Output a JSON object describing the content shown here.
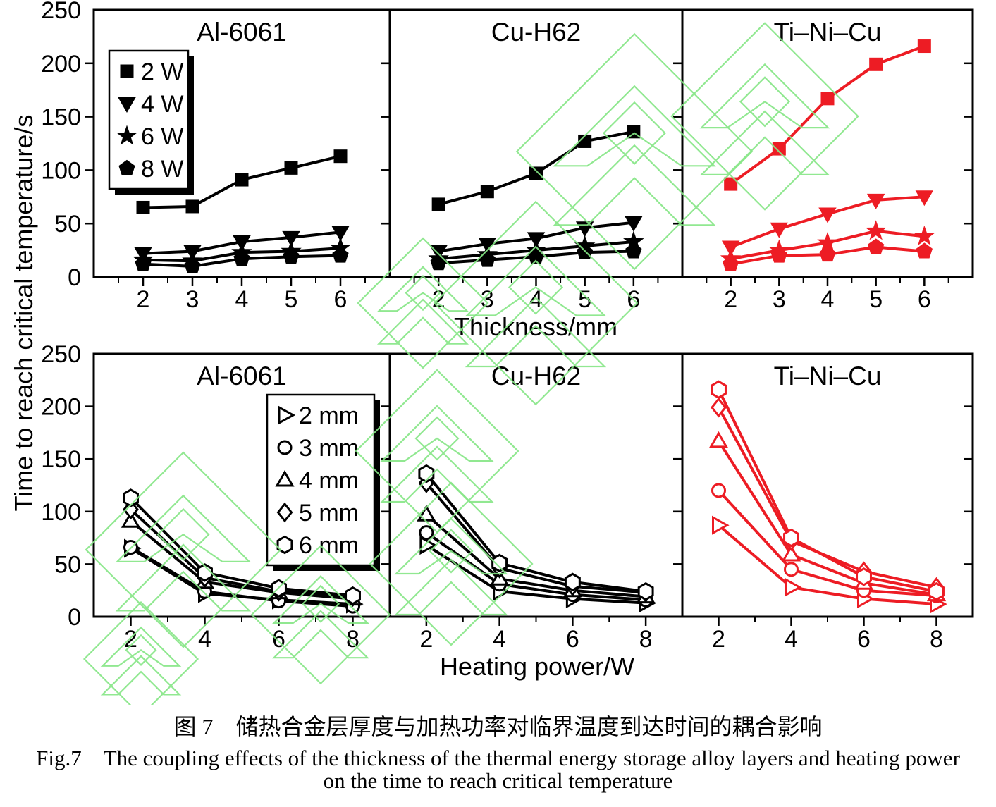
{
  "figure": {
    "ylabel": "Time to reach critical temperature/s",
    "top_xlabel": "Thickness/mm",
    "bottom_xlabel": "Heating power/W",
    "colors": {
      "black_series": "#000000",
      "red_series": "#ed1c24",
      "watermark_green": "#86e686"
    },
    "caption": {
      "line1_zh": "图 7　储热合金层厚度与加热功率对临界温度到达时间的耦合影响",
      "line2_en": "Fig.7　The coupling effects of the thickness of the thermal energy storage alloy layers and heating power",
      "line3_en": "on the time to reach critical temperature"
    }
  },
  "chart_data": [
    {
      "id": "al6061-thickness",
      "type": "line",
      "row": "top",
      "col": 0,
      "title": "Al-6061",
      "color": "#000000",
      "x": [
        2,
        3,
        4,
        5,
        6
      ],
      "xlim": [
        1,
        7
      ],
      "ylim": [
        0,
        250
      ],
      "xticks": [
        2,
        3,
        4,
        5,
        6
      ],
      "xminor": [
        1.5,
        2.5,
        3.5,
        4.5,
        5.5,
        6.5
      ],
      "yticks": [
        0,
        50,
        100,
        150,
        200,
        250
      ],
      "series": [
        {
          "name": "2 W",
          "marker": "square",
          "filled": true,
          "values": [
            65,
            66,
            91,
            102,
            113
          ]
        },
        {
          "name": "4 W",
          "marker": "triangle-down",
          "filled": true,
          "values": [
            22,
            24,
            33,
            37,
            42
          ]
        },
        {
          "name": "6 W",
          "marker": "star",
          "filled": true,
          "values": [
            16,
            15,
            23,
            24,
            27
          ]
        },
        {
          "name": "8 W",
          "marker": "pentagon",
          "filled": true,
          "values": [
            12,
            10,
            17,
            19,
            20
          ]
        }
      ],
      "legend": {
        "position": "upper-left",
        "items": [
          {
            "label": "2 W",
            "marker": "square"
          },
          {
            "label": "4 W",
            "marker": "triangle-down"
          },
          {
            "label": "6 W",
            "marker": "star"
          },
          {
            "label": "8 W",
            "marker": "pentagon"
          }
        ]
      }
    },
    {
      "id": "cuh62-thickness",
      "type": "line",
      "row": "top",
      "col": 1,
      "title": "Cu-H62",
      "color": "#000000",
      "x": [
        2,
        3,
        4,
        5,
        6
      ],
      "xlim": [
        1,
        7
      ],
      "ylim": [
        0,
        250
      ],
      "xticks": [
        2,
        3,
        4,
        5,
        6
      ],
      "xminor": [
        1.5,
        2.5,
        3.5,
        4.5,
        5.5,
        6.5
      ],
      "yticks": [
        0,
        50,
        100,
        150,
        200,
        250
      ],
      "series": [
        {
          "name": "2 W",
          "marker": "square",
          "filled": true,
          "values": [
            68,
            80,
            97,
            127,
            136
          ]
        },
        {
          "name": "4 W",
          "marker": "triangle-down",
          "filled": true,
          "values": [
            24,
            31,
            36,
            46,
            51
          ]
        },
        {
          "name": "6 W",
          "marker": "star",
          "filled": true,
          "values": [
            17,
            21,
            25,
            29,
            33
          ]
        },
        {
          "name": "8 W",
          "marker": "pentagon",
          "filled": true,
          "values": [
            13,
            16,
            19,
            23,
            24
          ]
        }
      ]
    },
    {
      "id": "tinicu-thickness",
      "type": "line",
      "row": "top",
      "col": 2,
      "title": "Ti–Ni–Cu",
      "color": "#ed1c24",
      "x": [
        2,
        3,
        4,
        5,
        6
      ],
      "xlim": [
        1,
        7
      ],
      "ylim": [
        0,
        250
      ],
      "xticks": [
        2,
        3,
        4,
        5,
        6
      ],
      "xminor": [
        1.5,
        2.5,
        3.5,
        4.5,
        5.5,
        6.5
      ],
      "yticks": [
        0,
        50,
        100,
        150,
        200,
        250
      ],
      "series": [
        {
          "name": "2 W",
          "marker": "square",
          "filled": true,
          "values": [
            87,
            120,
            167,
            199,
            216
          ]
        },
        {
          "name": "4 W",
          "marker": "triangle-down",
          "filled": true,
          "values": [
            28,
            45,
            59,
            72,
            75
          ]
        },
        {
          "name": "6 W",
          "marker": "star",
          "filled": true,
          "values": [
            17,
            25,
            32,
            43,
            38
          ]
        },
        {
          "name": "8 W",
          "marker": "pentagon",
          "filled": true,
          "values": [
            12,
            20,
            21,
            28,
            24
          ]
        }
      ]
    },
    {
      "id": "al6061-power",
      "type": "line",
      "row": "bottom",
      "col": 0,
      "title": "Al-6061",
      "color": "#000000",
      "x": [
        2,
        4,
        6,
        8
      ],
      "xlim": [
        1,
        9
      ],
      "ylim": [
        0,
        250
      ],
      "xticks": [
        2,
        4,
        6,
        8
      ],
      "xminor": [
        3,
        5,
        7
      ],
      "yticks": [
        0,
        50,
        100,
        150,
        200,
        250
      ],
      "series": [
        {
          "name": "2 mm",
          "marker": "triangle-right",
          "filled": false,
          "values": [
            65,
            22,
            16,
            12
          ]
        },
        {
          "name": "3 mm",
          "marker": "circle",
          "filled": false,
          "values": [
            66,
            24,
            15,
            10
          ]
        },
        {
          "name": "4 mm",
          "marker": "triangle-up",
          "filled": false,
          "values": [
            91,
            33,
            23,
            17
          ]
        },
        {
          "name": "5 mm",
          "marker": "diamond",
          "filled": false,
          "values": [
            102,
            37,
            24,
            19
          ]
        },
        {
          "name": "6 mm",
          "marker": "hexagon",
          "filled": false,
          "values": [
            113,
            42,
            27,
            20
          ]
        }
      ],
      "legend": {
        "position": "upper-right",
        "items": [
          {
            "label": "2 mm",
            "marker": "triangle-right"
          },
          {
            "label": "3 mm",
            "marker": "circle"
          },
          {
            "label": "4 mm",
            "marker": "triangle-up"
          },
          {
            "label": "5 mm",
            "marker": "diamond"
          },
          {
            "label": "6 mm",
            "marker": "hexagon"
          }
        ]
      }
    },
    {
      "id": "cuh62-power",
      "type": "line",
      "row": "bottom",
      "col": 1,
      "title": "Cu-H62",
      "color": "#000000",
      "x": [
        2,
        4,
        6,
        8
      ],
      "xlim": [
        1,
        9
      ],
      "ylim": [
        0,
        250
      ],
      "xticks": [
        2,
        4,
        6,
        8
      ],
      "xminor": [
        3,
        5,
        7
      ],
      "yticks": [
        0,
        50,
        100,
        150,
        200,
        250
      ],
      "series": [
        {
          "name": "2 mm",
          "marker": "triangle-right",
          "filled": false,
          "values": [
            68,
            24,
            17,
            13
          ]
        },
        {
          "name": "3 mm",
          "marker": "circle",
          "filled": false,
          "values": [
            80,
            31,
            21,
            16
          ]
        },
        {
          "name": "4 mm",
          "marker": "triangle-up",
          "filled": false,
          "values": [
            97,
            36,
            25,
            19
          ]
        },
        {
          "name": "5 mm",
          "marker": "diamond",
          "filled": false,
          "values": [
            127,
            46,
            29,
            23
          ]
        },
        {
          "name": "6 mm",
          "marker": "hexagon",
          "filled": false,
          "values": [
            136,
            51,
            33,
            24
          ]
        }
      ]
    },
    {
      "id": "tinicu-power",
      "type": "line",
      "row": "bottom",
      "col": 2,
      "title": "Ti–Ni–Cu",
      "color": "#ed1c24",
      "x": [
        2,
        4,
        6,
        8
      ],
      "xlim": [
        1,
        9
      ],
      "ylim": [
        0,
        250
      ],
      "xticks": [
        2,
        4,
        6,
        8
      ],
      "xminor": [
        3,
        5,
        7
      ],
      "yticks": [
        0,
        50,
        100,
        150,
        200,
        250
      ],
      "series": [
        {
          "name": "2 mm",
          "marker": "triangle-right",
          "filled": false,
          "values": [
            87,
            28,
            17,
            12
          ]
        },
        {
          "name": "3 mm",
          "marker": "circle",
          "filled": false,
          "values": [
            120,
            45,
            25,
            20
          ]
        },
        {
          "name": "4 mm",
          "marker": "triangle-up",
          "filled": false,
          "values": [
            167,
            59,
            32,
            21
          ]
        },
        {
          "name": "5 mm",
          "marker": "diamond",
          "filled": false,
          "values": [
            199,
            72,
            43,
            28
          ]
        },
        {
          "name": "6 mm",
          "marker": "hexagon",
          "filled": false,
          "values": [
            216,
            75,
            38,
            24
          ]
        }
      ]
    }
  ]
}
